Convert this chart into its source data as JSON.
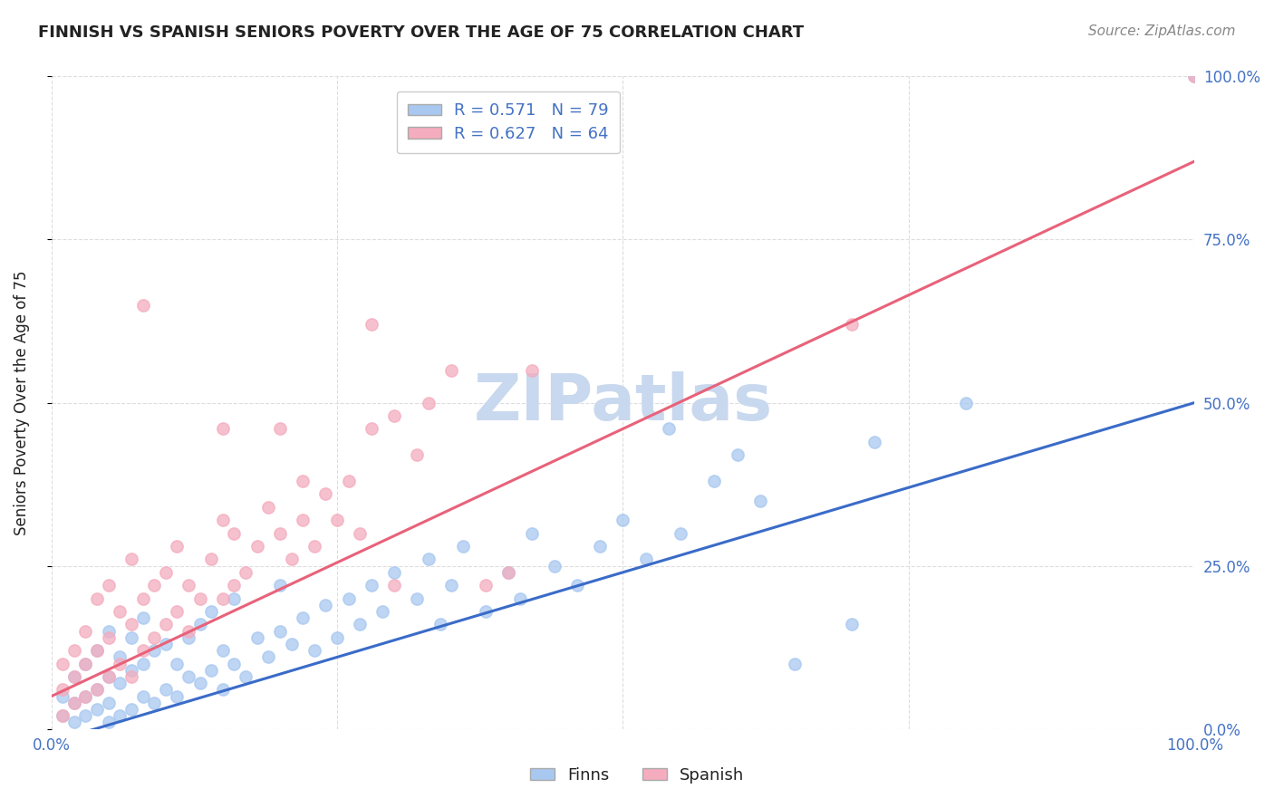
{
  "title": "FINNISH VS SPANISH SENIORS POVERTY OVER THE AGE OF 75 CORRELATION CHART",
  "source": "Source: ZipAtlas.com",
  "ylabel": "Seniors Poverty Over the Age of 75",
  "finns_R": 0.571,
  "finns_N": 79,
  "spanish_R": 0.627,
  "spanish_N": 64,
  "finns_color": "#A8C8F0",
  "spanish_color": "#F4ACBE",
  "finns_line_color": "#3A6BC8",
  "spanish_line_color": "#E8627A",
  "title_color": "#222222",
  "label_color": "#4472C4",
  "watermark": "ZIPatlas",
  "watermark_color": "#C8D8EE",
  "background_color": "#FFFFFF",
  "grid_color": "#DDDDDD",
  "right_axis_tick_color": "#4472C4",
  "xlim": [
    0,
    1
  ],
  "ylim": [
    0,
    1
  ],
  "xtick_labels": [
    "0.0%",
    "",
    "",
    "",
    "100.0%"
  ],
  "ytick_labels_right": [
    "0.0%",
    "25.0%",
    "50.0%",
    "75.0%",
    "100.0%"
  ],
  "finns_line_x0": 0.0,
  "finns_line_y0": -0.02,
  "finns_line_x1": 1.0,
  "finns_line_y1": 0.5,
  "spanish_line_x0": 0.0,
  "spanish_line_y0": 0.05,
  "spanish_line_x1": 1.0,
  "spanish_line_y1": 0.87,
  "finns_points": [
    [
      0.01,
      0.02
    ],
    [
      0.01,
      0.05
    ],
    [
      0.02,
      0.01
    ],
    [
      0.02,
      0.04
    ],
    [
      0.02,
      0.08
    ],
    [
      0.03,
      0.02
    ],
    [
      0.03,
      0.05
    ],
    [
      0.03,
      0.1
    ],
    [
      0.04,
      0.03
    ],
    [
      0.04,
      0.06
    ],
    [
      0.04,
      0.12
    ],
    [
      0.05,
      0.01
    ],
    [
      0.05,
      0.04
    ],
    [
      0.05,
      0.08
    ],
    [
      0.05,
      0.15
    ],
    [
      0.06,
      0.02
    ],
    [
      0.06,
      0.07
    ],
    [
      0.06,
      0.11
    ],
    [
      0.07,
      0.03
    ],
    [
      0.07,
      0.09
    ],
    [
      0.07,
      0.14
    ],
    [
      0.08,
      0.05
    ],
    [
      0.08,
      0.1
    ],
    [
      0.08,
      0.17
    ],
    [
      0.09,
      0.04
    ],
    [
      0.09,
      0.12
    ],
    [
      0.1,
      0.06
    ],
    [
      0.1,
      0.13
    ],
    [
      0.11,
      0.05
    ],
    [
      0.11,
      0.1
    ],
    [
      0.12,
      0.08
    ],
    [
      0.12,
      0.14
    ],
    [
      0.13,
      0.07
    ],
    [
      0.13,
      0.16
    ],
    [
      0.14,
      0.09
    ],
    [
      0.14,
      0.18
    ],
    [
      0.15,
      0.06
    ],
    [
      0.15,
      0.12
    ],
    [
      0.16,
      0.1
    ],
    [
      0.16,
      0.2
    ],
    [
      0.17,
      0.08
    ],
    [
      0.18,
      0.14
    ],
    [
      0.19,
      0.11
    ],
    [
      0.2,
      0.15
    ],
    [
      0.2,
      0.22
    ],
    [
      0.21,
      0.13
    ],
    [
      0.22,
      0.17
    ],
    [
      0.23,
      0.12
    ],
    [
      0.24,
      0.19
    ],
    [
      0.25,
      0.14
    ],
    [
      0.26,
      0.2
    ],
    [
      0.27,
      0.16
    ],
    [
      0.28,
      0.22
    ],
    [
      0.29,
      0.18
    ],
    [
      0.3,
      0.24
    ],
    [
      0.32,
      0.2
    ],
    [
      0.33,
      0.26
    ],
    [
      0.34,
      0.16
    ],
    [
      0.35,
      0.22
    ],
    [
      0.36,
      0.28
    ],
    [
      0.38,
      0.18
    ],
    [
      0.4,
      0.24
    ],
    [
      0.41,
      0.2
    ],
    [
      0.42,
      0.3
    ],
    [
      0.44,
      0.25
    ],
    [
      0.46,
      0.22
    ],
    [
      0.48,
      0.28
    ],
    [
      0.5,
      0.32
    ],
    [
      0.52,
      0.26
    ],
    [
      0.54,
      0.46
    ],
    [
      0.55,
      0.3
    ],
    [
      0.58,
      0.38
    ],
    [
      0.6,
      0.42
    ],
    [
      0.62,
      0.35
    ],
    [
      0.65,
      0.1
    ],
    [
      0.7,
      0.16
    ],
    [
      0.72,
      0.44
    ],
    [
      0.8,
      0.5
    ],
    [
      1.0,
      1.0
    ]
  ],
  "spanish_points": [
    [
      0.01,
      0.02
    ],
    [
      0.01,
      0.06
    ],
    [
      0.01,
      0.1
    ],
    [
      0.02,
      0.04
    ],
    [
      0.02,
      0.08
    ],
    [
      0.02,
      0.12
    ],
    [
      0.03,
      0.05
    ],
    [
      0.03,
      0.1
    ],
    [
      0.03,
      0.15
    ],
    [
      0.04,
      0.06
    ],
    [
      0.04,
      0.12
    ],
    [
      0.04,
      0.2
    ],
    [
      0.05,
      0.08
    ],
    [
      0.05,
      0.14
    ],
    [
      0.05,
      0.22
    ],
    [
      0.06,
      0.1
    ],
    [
      0.06,
      0.18
    ],
    [
      0.07,
      0.08
    ],
    [
      0.07,
      0.16
    ],
    [
      0.07,
      0.26
    ],
    [
      0.08,
      0.12
    ],
    [
      0.08,
      0.2
    ],
    [
      0.09,
      0.14
    ],
    [
      0.09,
      0.22
    ],
    [
      0.1,
      0.16
    ],
    [
      0.1,
      0.24
    ],
    [
      0.11,
      0.18
    ],
    [
      0.11,
      0.28
    ],
    [
      0.12,
      0.15
    ],
    [
      0.12,
      0.22
    ],
    [
      0.13,
      0.2
    ],
    [
      0.14,
      0.26
    ],
    [
      0.15,
      0.2
    ],
    [
      0.15,
      0.32
    ],
    [
      0.16,
      0.22
    ],
    [
      0.16,
      0.3
    ],
    [
      0.17,
      0.24
    ],
    [
      0.18,
      0.28
    ],
    [
      0.19,
      0.34
    ],
    [
      0.2,
      0.3
    ],
    [
      0.21,
      0.26
    ],
    [
      0.22,
      0.32
    ],
    [
      0.23,
      0.28
    ],
    [
      0.24,
      0.36
    ],
    [
      0.25,
      0.32
    ],
    [
      0.26,
      0.38
    ],
    [
      0.27,
      0.3
    ],
    [
      0.28,
      0.46
    ],
    [
      0.3,
      0.48
    ],
    [
      0.3,
      0.22
    ],
    [
      0.32,
      0.42
    ],
    [
      0.33,
      0.5
    ],
    [
      0.2,
      0.46
    ],
    [
      0.15,
      0.46
    ],
    [
      0.22,
      0.38
    ],
    [
      0.38,
      0.22
    ],
    [
      0.4,
      0.24
    ],
    [
      0.28,
      0.62
    ],
    [
      0.35,
      0.55
    ],
    [
      0.7,
      0.62
    ],
    [
      0.08,
      0.65
    ],
    [
      0.35,
      0.96
    ],
    [
      0.42,
      0.55
    ],
    [
      1.0,
      1.0
    ]
  ]
}
